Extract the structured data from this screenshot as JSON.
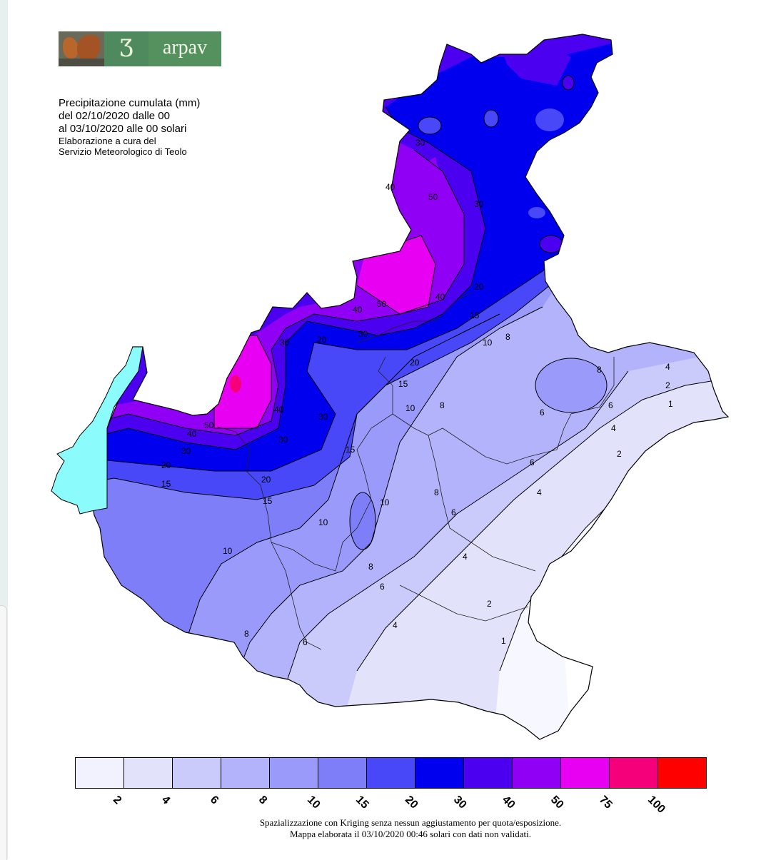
{
  "logo": {
    "mark": "Ʒ",
    "text": "arpav"
  },
  "title": {
    "line1": "Precipitazione cumulata (mm)",
    "line2": "del 02/10/2020 dalle 00",
    "line3": "al 03/10/2020 alle 00 solari",
    "line4": "Elaborazione a cura del",
    "line5": "Servizio Meteorologico di Teolo"
  },
  "contour_labels": [
    "1",
    "2",
    "4",
    "6",
    "8",
    "10",
    "15",
    "20",
    "30",
    "40",
    "50"
  ],
  "legend": {
    "colors": [
      "#f2f2ff",
      "#e2e2fb",
      "#cbcbfb",
      "#b3b3fb",
      "#9a9afb",
      "#7e7ef8",
      "#4848f8",
      "#0000ef",
      "#4c00f0",
      "#9000f5",
      "#e800f3",
      "#f5007a",
      "#ff0000"
    ],
    "ticks": [
      "2",
      "4",
      "6",
      "8",
      "10",
      "15",
      "20",
      "30",
      "40",
      "50",
      "75",
      "100"
    ]
  },
  "footer": {
    "line1": "Spazializzazione con Kriging senza nessun aggiustamento per quota/esposizione.",
    "line2": "Mappa elaborata il 03/10/2020 00:46 solari con dati non validati."
  },
  "lake_color": "#8cfbfb"
}
